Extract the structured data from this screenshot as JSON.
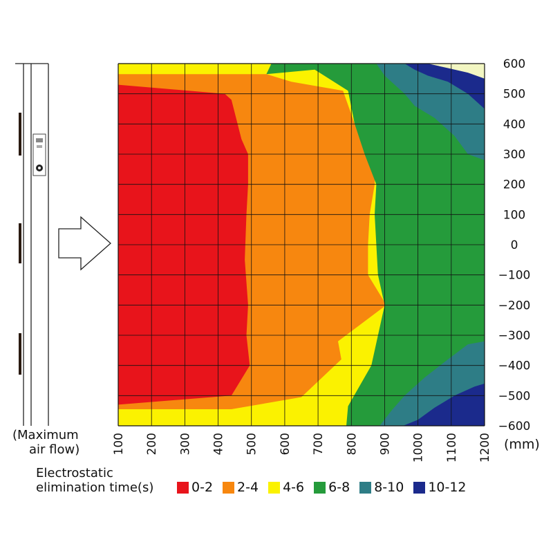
{
  "device": {
    "caption_line1": "(Maximum",
    "caption_line2": "air flow)"
  },
  "chart_data": {
    "type": "heatmap",
    "title": "",
    "xlabel": "",
    "ylabel": "",
    "x_unit": "(mm)",
    "x_ticks": [
      100,
      200,
      300,
      400,
      500,
      600,
      700,
      800,
      900,
      1000,
      1100,
      1200
    ],
    "y_ticks": [
      600,
      500,
      400,
      300,
      200,
      100,
      0,
      -100,
      -200,
      -300,
      -400,
      -500,
      -600
    ],
    "y_tick_labels": [
      "600",
      "500",
      "400",
      "300",
      "200",
      "100",
      "0",
      "−100",
      "−200",
      "−300",
      "−400",
      "−500",
      "−600"
    ],
    "xlim": [
      100,
      1200
    ],
    "ylim": [
      -600,
      600
    ],
    "grid": true,
    "legend_title_line1": "Electrostatic",
    "legend_title_line2": "elimination time(s)",
    "value_label": "Electrostatic elimination time (s)",
    "color_bins": [
      {
        "label": "0-2",
        "min": 0,
        "max": 2,
        "color": "#e8141b"
      },
      {
        "label": "2-4",
        "min": 2,
        "max": 4,
        "color": "#f7870f"
      },
      {
        "label": "4-6",
        "min": 4,
        "max": 6,
        "color": "#fbf200"
      },
      {
        "label": "6-8",
        "min": 6,
        "max": 8,
        "color": "#259b3b"
      },
      {
        "label": "8-10",
        "min": 8,
        "max": 10,
        "color": "#2e7d86"
      },
      {
        "label": "10-12",
        "min": 10,
        "max": 12,
        "color": "#1b2a8c"
      },
      {
        "label": "",
        "min": 12,
        "max": 14,
        "color": "#f2f6c2"
      }
    ],
    "zones": [
      {
        "bin": "2-4",
        "points": [
          [
            100,
            600
          ],
          [
            1200,
            600
          ],
          [
            1200,
            -600
          ],
          [
            100,
            -600
          ]
        ]
      },
      {
        "bin": "0-2",
        "points": [
          [
            100,
            530
          ],
          [
            420,
            500
          ],
          [
            440,
            480
          ],
          [
            470,
            350
          ],
          [
            490,
            300
          ],
          [
            490,
            200
          ],
          [
            485,
            100
          ],
          [
            480,
            -50
          ],
          [
            490,
            -200
          ],
          [
            485,
            -300
          ],
          [
            495,
            -400
          ],
          [
            440,
            -500
          ],
          [
            100,
            -530
          ]
        ]
      },
      {
        "bin": "4-6",
        "points": [
          [
            100,
            600
          ],
          [
            1200,
            600
          ],
          [
            1200,
            -600
          ],
          [
            100,
            -600
          ],
          [
            100,
            -545
          ],
          [
            440,
            -545
          ],
          [
            650,
            -505
          ],
          [
            770,
            -380
          ],
          [
            760,
            -320
          ],
          [
            905,
            -200
          ],
          [
            850,
            -100
          ],
          [
            850,
            0
          ],
          [
            855,
            100
          ],
          [
            870,
            200
          ],
          [
            870,
            300
          ],
          [
            810,
            400
          ],
          [
            775,
            510
          ],
          [
            620,
            540
          ],
          [
            545,
            565
          ],
          [
            100,
            565
          ]
        ]
      },
      {
        "bin": "6-8",
        "points": [
          [
            545,
            565
          ],
          [
            560,
            600
          ],
          [
            1200,
            600
          ],
          [
            1200,
            -600
          ],
          [
            785,
            -600
          ],
          [
            790,
            -535
          ],
          [
            860,
            -400
          ],
          [
            900,
            -200
          ],
          [
            880,
            -100
          ],
          [
            875,
            0
          ],
          [
            870,
            100
          ],
          [
            875,
            200
          ],
          [
            840,
            300
          ],
          [
            810,
            400
          ],
          [
            790,
            510
          ],
          [
            740,
            545
          ],
          [
            690,
            580
          ]
        ]
      },
      {
        "bin": "8-10",
        "points": [
          [
            875,
            600
          ],
          [
            1200,
            600
          ],
          [
            1200,
            280
          ],
          [
            1150,
            300
          ],
          [
            1110,
            360
          ],
          [
            1050,
            420
          ],
          [
            990,
            460
          ],
          [
            960,
            500
          ],
          [
            900,
            560
          ]
        ]
      },
      {
        "bin": "8-10",
        "points": [
          [
            1200,
            -600
          ],
          [
            885,
            -600
          ],
          [
            920,
            -550
          ],
          [
            960,
            -500
          ],
          [
            1020,
            -440
          ],
          [
            1090,
            -380
          ],
          [
            1150,
            -330
          ],
          [
            1200,
            -320
          ]
        ]
      },
      {
        "bin": "10-12",
        "points": [
          [
            960,
            600
          ],
          [
            1200,
            600
          ],
          [
            1200,
            450
          ],
          [
            1150,
            500
          ],
          [
            1090,
            540
          ],
          [
            1030,
            560
          ],
          [
            990,
            580
          ]
        ]
      },
      {
        "bin": "10-12",
        "points": [
          [
            1200,
            -600
          ],
          [
            955,
            -600
          ],
          [
            1000,
            -580
          ],
          [
            1050,
            -540
          ],
          [
            1110,
            -500
          ],
          [
            1170,
            -470
          ],
          [
            1200,
            -460
          ]
        ]
      },
      {
        "bin": "",
        "points": [
          [
            1030,
            600
          ],
          [
            1200,
            600
          ],
          [
            1200,
            550
          ],
          [
            1150,
            570
          ],
          [
            1090,
            585
          ]
        ]
      }
    ]
  }
}
